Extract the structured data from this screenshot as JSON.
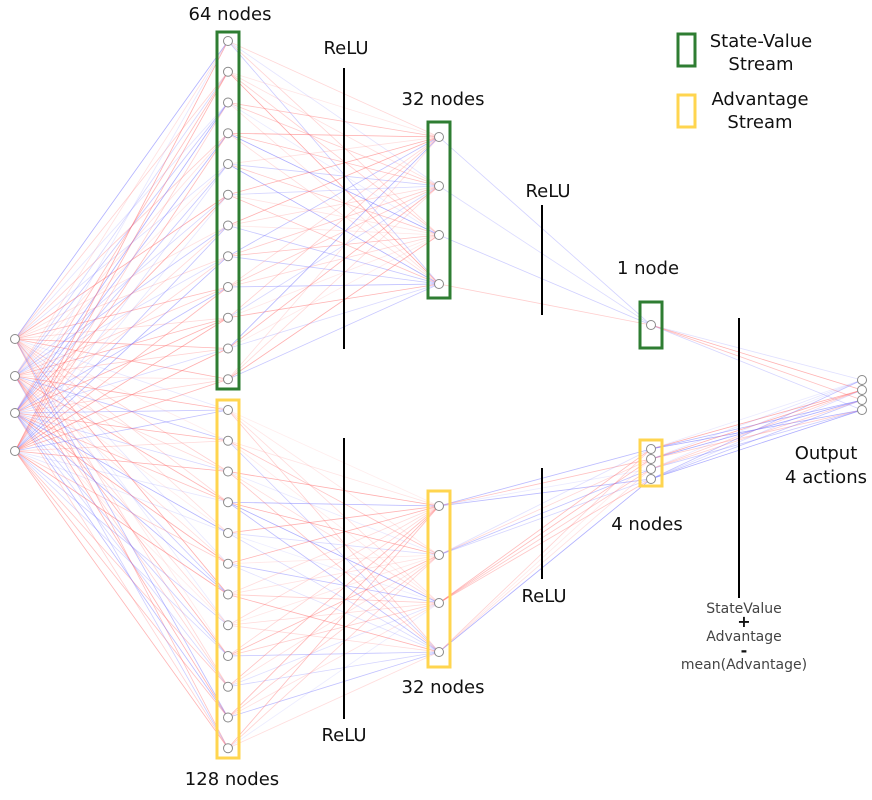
{
  "labels": {
    "nodes_64": "64 nodes",
    "nodes_128": "128 nodes",
    "nodes_32_top": "32 nodes",
    "nodes_32_bottom": "32 nodes",
    "nodes_1": "1 node",
    "nodes_4": "4 nodes",
    "relu_1": "ReLU",
    "relu_2": "ReLU",
    "relu_3": "ReLU",
    "relu_4": "ReLU",
    "output_line1": "Output",
    "output_line2": "4 actions",
    "formula_line1": "StateValue",
    "formula_plus": "+",
    "formula_line2": "Advantage",
    "formula_minus": "-",
    "formula_line3": "mean(Advantage)"
  },
  "legend": {
    "state_value_line1": "State-Value",
    "state_value_line2": "Stream",
    "advantage_line1": "Advantage",
    "advantage_line2": "Stream"
  },
  "colors": {
    "state_value_stream": "#2e7d32",
    "advantage_stream": "#ffd54f",
    "positive_weight": "#ff6b6b",
    "negative_weight": "#6b6bff"
  }
}
